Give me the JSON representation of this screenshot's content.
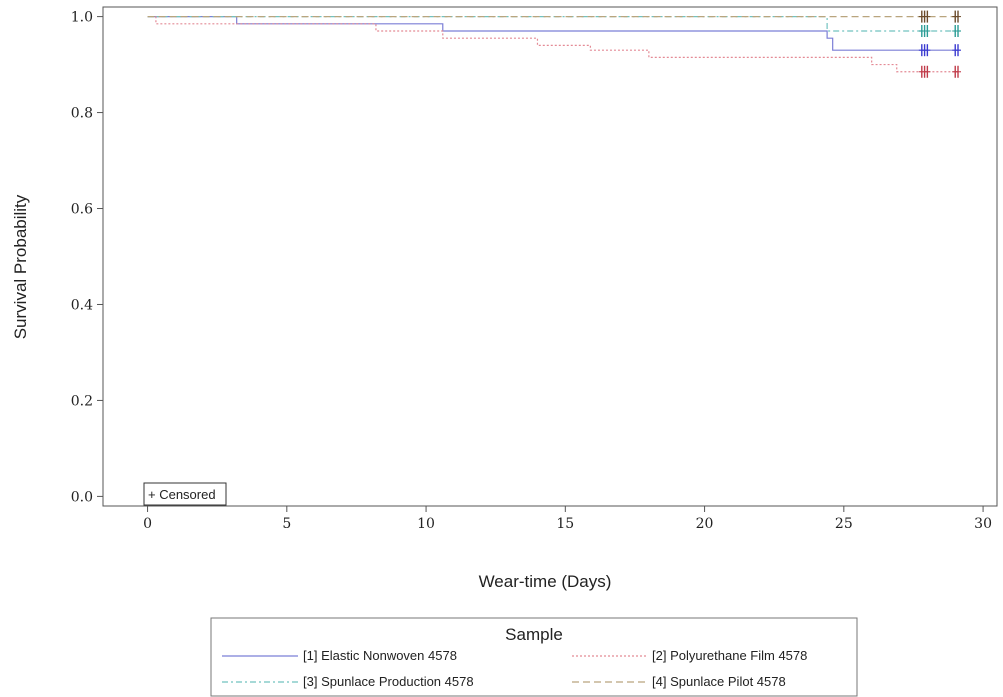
{
  "chart_data": {
    "type": "line",
    "subtype": "kaplan-meier-step",
    "xlabel": "Wear-time (Days)",
    "ylabel": "Survival Probability",
    "xlim": [
      -1.6,
      30.5
    ],
    "ylim": [
      -0.02,
      1.02
    ],
    "xticks": [
      0,
      5,
      10,
      15,
      20,
      25,
      30
    ],
    "yticks": [
      0.0,
      0.2,
      0.4,
      0.6,
      0.8,
      1.0
    ],
    "ytick_labels": [
      "0.0",
      "0.2",
      "0.4",
      "0.6",
      "0.8",
      "1.0"
    ],
    "grid": false,
    "censored_note": "+ Censored",
    "legend": {
      "title": "Sample",
      "position": "bottom-center"
    },
    "series": [
      {
        "name": "[1] Elastic Nonwoven 4578",
        "color": "#7b7fd6",
        "dash": "solid",
        "steps": [
          [
            0,
            1.0
          ],
          [
            3.2,
            0.985
          ],
          [
            10.6,
            0.97
          ],
          [
            24.4,
            0.955
          ],
          [
            24.6,
            0.93
          ],
          [
            29.2,
            0.93
          ]
        ],
        "censored": [
          27.8,
          27.9,
          28.0,
          29.0,
          29.1
        ],
        "censor_color": "#3a3ad0"
      },
      {
        "name": "[2] Polyurethane Film 4578",
        "color": "#e48a95",
        "dash": "dot",
        "steps": [
          [
            0,
            1.0
          ],
          [
            0.3,
            0.985
          ],
          [
            8.2,
            0.97
          ],
          [
            10.6,
            0.955
          ],
          [
            14.0,
            0.94
          ],
          [
            15.9,
            0.93
          ],
          [
            18.0,
            0.915
          ],
          [
            26.0,
            0.9
          ],
          [
            26.9,
            0.885
          ],
          [
            29.2,
            0.885
          ]
        ],
        "censored": [
          27.8,
          27.9,
          28.0,
          29.0,
          29.1
        ],
        "censor_color": "#c03a48"
      },
      {
        "name": "[3] Spunlace Production 4578",
        "color": "#72c2bf",
        "dash": "dashdot",
        "steps": [
          [
            0,
            1.0
          ],
          [
            24.4,
            0.97
          ],
          [
            29.2,
            0.97
          ]
        ],
        "censored": [
          27.8,
          27.9,
          28.0,
          29.0,
          29.1
        ],
        "censor_color": "#2a9c95"
      },
      {
        "name": "[4] Spunlace Pilot 4578",
        "color": "#b9a57e",
        "dash": "dash",
        "steps": [
          [
            0,
            1.0
          ],
          [
            29.2,
            1.0
          ]
        ],
        "censored": [
          27.8,
          27.9,
          28.0,
          29.0,
          29.1
        ],
        "censor_color": "#6b4a2a"
      }
    ]
  }
}
